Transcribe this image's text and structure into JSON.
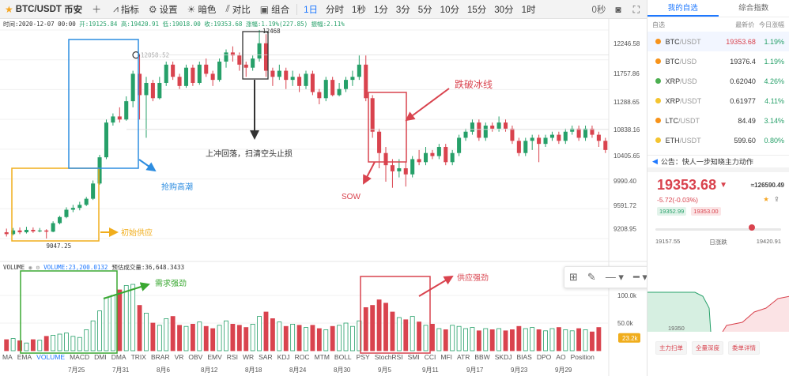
{
  "toolbar": {
    "symbol": "BTC/USDT",
    "exchange": "币安",
    "indicators": "指标",
    "settings": "设置",
    "dark": "暗色",
    "compare": "对比",
    "combo": "组合",
    "intervals": [
      "1日",
      "分时",
      "1秒",
      "1分",
      "3分",
      "5分",
      "10分",
      "15分",
      "30分",
      "1时"
    ],
    "countdown": "0秒"
  },
  "info": {
    "time": "时间:2020-12-07 00:00",
    "open": "开:19125.84",
    "high": "高:19420.91",
    "low": "低:19018.00",
    "close": "收:19353.68",
    "change": "涨幅:1.19%(227.85)",
    "amplitude": "振幅:2.11%"
  },
  "volume_info": {
    "name": "VOLUME",
    "value": "VOLUME:23,200.0132",
    "forecast": "预估成交量:36,648.3433"
  },
  "indicators": [
    "MA",
    "EMA",
    "VOLUME",
    "MACD",
    "DMI",
    "DMA",
    "TRIX",
    "BRAR",
    "VR",
    "OBV",
    "EMV",
    "RSI",
    "WR",
    "SAR",
    "KDJ",
    "ROC",
    "MTM",
    "BOLL",
    "PSY",
    "StochRSI",
    "SMI",
    "CCI",
    "MFI",
    "ATR",
    "BBW",
    "SKDJ",
    "BIAS",
    "DPO",
    "AO",
    "Position"
  ],
  "chart_data": {
    "type": "candlestick",
    "y_axis_ticks": [
      "12246.58",
      "11757.86",
      "11288.65",
      "10838.16",
      "10405.65",
      "9990.40",
      "9591.72",
      "9208.95"
    ],
    "volume_axis_ticks": [
      "100.0k",
      "50.0k"
    ],
    "volume_label": "23.2k",
    "x_ticks": [
      "7月25",
      "7月31",
      "8月6",
      "8月12",
      "8月18",
      "8月24",
      "8月30",
      "9月5",
      "9月11",
      "9月17",
      "9月23",
      "9月29"
    ],
    "annotations": {
      "high_marker": "12468",
      "low_marker": "9047.25",
      "mid_marker": "12058.52"
    },
    "candles": [
      {
        "o": 9150,
        "c": 9120,
        "h": 9210,
        "l": 9080
      },
      {
        "o": 9120,
        "c": 9180,
        "h": 9220,
        "l": 9100
      },
      {
        "o": 9180,
        "c": 9150,
        "h": 9230,
        "l": 9120
      },
      {
        "o": 9150,
        "c": 9190,
        "h": 9240,
        "l": 9130
      },
      {
        "o": 9190,
        "c": 9165,
        "h": 9230,
        "l": 9140
      },
      {
        "o": 9165,
        "c": 9180,
        "h": 9220,
        "l": 9150
      },
      {
        "o": 9180,
        "c": 9160,
        "h": 9200,
        "l": 9047
      },
      {
        "o": 9160,
        "c": 9300,
        "h": 9330,
        "l": 9150
      },
      {
        "o": 9300,
        "c": 9400,
        "h": 9420,
        "l": 9280
      },
      {
        "o": 9400,
        "c": 9520,
        "h": 9560,
        "l": 9380
      },
      {
        "o": 9520,
        "c": 9550,
        "h": 9600,
        "l": 9480
      },
      {
        "o": 9550,
        "c": 9600,
        "h": 9650,
        "l": 9510
      },
      {
        "o": 9600,
        "c": 9700,
        "h": 9730,
        "l": 9580
      },
      {
        "o": 9700,
        "c": 9950,
        "h": 10000,
        "l": 9680
      },
      {
        "o": 9950,
        "c": 10380,
        "h": 10420,
        "l": 9930
      },
      {
        "o": 10380,
        "c": 10950,
        "h": 11000,
        "l": 10350
      },
      {
        "o": 10950,
        "c": 11050,
        "h": 11100,
        "l": 10900
      },
      {
        "o": 11050,
        "c": 11000,
        "h": 11200,
        "l": 10950
      },
      {
        "o": 11000,
        "c": 11300,
        "h": 11380,
        "l": 10980
      },
      {
        "o": 11300,
        "c": 11750,
        "h": 11800,
        "l": 11200
      },
      {
        "o": 11750,
        "c": 11400,
        "h": 12058,
        "l": 11000
      },
      {
        "o": 11400,
        "c": 11600,
        "h": 11700,
        "l": 10700
      },
      {
        "o": 11600,
        "c": 11350,
        "h": 11650,
        "l": 11300
      },
      {
        "o": 11350,
        "c": 11600,
        "h": 11700,
        "l": 11330
      },
      {
        "o": 11600,
        "c": 11900,
        "h": 11950,
        "l": 11550
      },
      {
        "o": 11900,
        "c": 11700,
        "h": 11950,
        "l": 11650
      },
      {
        "o": 11700,
        "c": 11550,
        "h": 11750,
        "l": 11500
      },
      {
        "o": 11550,
        "c": 11850,
        "h": 11900,
        "l": 11520
      },
      {
        "o": 11850,
        "c": 11600,
        "h": 11900,
        "l": 11550
      },
      {
        "o": 11600,
        "c": 11900,
        "h": 11950,
        "l": 11570
      },
      {
        "o": 11900,
        "c": 11750,
        "h": 12000,
        "l": 11700
      },
      {
        "o": 11750,
        "c": 11650,
        "h": 11800,
        "l": 11550
      },
      {
        "o": 11650,
        "c": 11950,
        "h": 12000,
        "l": 11620
      },
      {
        "o": 11950,
        "c": 12100,
        "h": 12150,
        "l": 11850
      },
      {
        "o": 12100,
        "c": 12050,
        "h": 12200,
        "l": 11950
      },
      {
        "o": 12050,
        "c": 11900,
        "h": 12100,
        "l": 11800
      },
      {
        "o": 11900,
        "c": 11850,
        "h": 11950,
        "l": 11700
      },
      {
        "o": 11850,
        "c": 12000,
        "h": 12050,
        "l": 11800
      },
      {
        "o": 12000,
        "c": 12250,
        "h": 12468,
        "l": 11950
      },
      {
        "o": 12250,
        "c": 11800,
        "h": 12400,
        "l": 11700
      },
      {
        "o": 11800,
        "c": 11700,
        "h": 11850,
        "l": 11550
      },
      {
        "o": 11700,
        "c": 11800,
        "h": 11900,
        "l": 11650
      },
      {
        "o": 11800,
        "c": 11650,
        "h": 11850,
        "l": 11500
      },
      {
        "o": 11650,
        "c": 11700,
        "h": 11800,
        "l": 11550
      },
      {
        "o": 11700,
        "c": 11550,
        "h": 11750,
        "l": 11450
      },
      {
        "o": 11550,
        "c": 11750,
        "h": 11800,
        "l": 11500
      },
      {
        "o": 11750,
        "c": 11450,
        "h": 11800,
        "l": 11400
      },
      {
        "o": 11450,
        "c": 11350,
        "h": 11500,
        "l": 11250
      },
      {
        "o": 11350,
        "c": 11650,
        "h": 11700,
        "l": 11300
      },
      {
        "o": 11650,
        "c": 11400,
        "h": 11700,
        "l": 11380
      },
      {
        "o": 11400,
        "c": 11500,
        "h": 11600,
        "l": 11380
      },
      {
        "o": 11500,
        "c": 11650,
        "h": 11700,
        "l": 11450
      },
      {
        "o": 11650,
        "c": 11700,
        "h": 11800,
        "l": 11550
      },
      {
        "o": 11700,
        "c": 11900,
        "h": 12050,
        "l": 11650
      },
      {
        "o": 11900,
        "c": 11350,
        "h": 12050,
        "l": 11300
      },
      {
        "o": 11350,
        "c": 10800,
        "h": 11400,
        "l": 10700
      },
      {
        "o": 10800,
        "c": 10450,
        "h": 10850,
        "l": 10200
      },
      {
        "o": 10450,
        "c": 10250,
        "h": 10550,
        "l": 9980
      },
      {
        "o": 10250,
        "c": 10150,
        "h": 10350,
        "l": 9880
      },
      {
        "o": 10150,
        "c": 10200,
        "h": 10350,
        "l": 10050
      },
      {
        "o": 10200,
        "c": 10100,
        "h": 10300,
        "l": 9900
      },
      {
        "o": 10100,
        "c": 10350,
        "h": 10400,
        "l": 10050
      },
      {
        "o": 10350,
        "c": 10300,
        "h": 10500,
        "l": 10250
      },
      {
        "o": 10300,
        "c": 10450,
        "h": 10550,
        "l": 10250
      },
      {
        "o": 10450,
        "c": 10400,
        "h": 10500,
        "l": 10350
      },
      {
        "o": 10400,
        "c": 10550,
        "h": 10600,
        "l": 10350
      },
      {
        "o": 10550,
        "c": 10300,
        "h": 10600,
        "l": 10250
      },
      {
        "o": 10300,
        "c": 10450,
        "h": 10500,
        "l": 10250
      },
      {
        "o": 10450,
        "c": 10700,
        "h": 10750,
        "l": 10400
      },
      {
        "o": 10700,
        "c": 10800,
        "h": 10850,
        "l": 10650
      },
      {
        "o": 10800,
        "c": 10950,
        "h": 11000,
        "l": 10750
      },
      {
        "o": 10950,
        "c": 10700,
        "h": 11000,
        "l": 10650
      },
      {
        "o": 10700,
        "c": 10900,
        "h": 10950,
        "l": 10650
      },
      {
        "o": 10900,
        "c": 10850,
        "h": 10950,
        "l": 10800
      },
      {
        "o": 10850,
        "c": 10950,
        "h": 11050,
        "l": 10800
      },
      {
        "o": 10950,
        "c": 10850,
        "h": 11000,
        "l": 10800
      },
      {
        "o": 10850,
        "c": 10650,
        "h": 10900,
        "l": 10600
      },
      {
        "o": 10650,
        "c": 10450,
        "h": 10700,
        "l": 10400
      },
      {
        "o": 10450,
        "c": 10650,
        "h": 10700,
        "l": 10400
      },
      {
        "o": 10650,
        "c": 10700,
        "h": 10750,
        "l": 10500
      },
      {
        "o": 10700,
        "c": 10600,
        "h": 10750,
        "l": 10300
      },
      {
        "o": 10600,
        "c": 10700,
        "h": 10750,
        "l": 10550
      },
      {
        "o": 10700,
        "c": 10750,
        "h": 10800,
        "l": 10650
      },
      {
        "o": 10750,
        "c": 10650,
        "h": 10800,
        "l": 10600
      },
      {
        "o": 10650,
        "c": 10800,
        "h": 10850,
        "l": 10600
      },
      {
        "o": 10800,
        "c": 10850,
        "h": 10900,
        "l": 10750
      },
      {
        "o": 10850,
        "c": 10700,
        "h": 10900,
        "l": 10650
      },
      {
        "o": 10700,
        "c": 10850,
        "h": 10900,
        "l": 10650
      },
      {
        "o": 10850,
        "c": 10750,
        "h": 10900,
        "l": 10700
      },
      {
        "o": 10750,
        "c": 10650,
        "h": 10800,
        "l": 10550
      },
      {
        "o": 10650,
        "c": 10500,
        "h": 10700,
        "l": 10450
      }
    ],
    "volumes": [
      20,
      22,
      18,
      14,
      20,
      19,
      26,
      28,
      30,
      32,
      26,
      24,
      38,
      54,
      72,
      96,
      100,
      110,
      118,
      120,
      82,
      68,
      50,
      46,
      58,
      62,
      46,
      44,
      48,
      52,
      44,
      40,
      46,
      54,
      48,
      46,
      42,
      48,
      62,
      70,
      58,
      52,
      44,
      48,
      46,
      42,
      46,
      40,
      38,
      44,
      46,
      50,
      44,
      54,
      78,
      82,
      92,
      86,
      70,
      60,
      56,
      62,
      52,
      46,
      48,
      40,
      38,
      46,
      44,
      40,
      42,
      36,
      40,
      38,
      40,
      36,
      38,
      44,
      40,
      42,
      38,
      36,
      40,
      42,
      38,
      36,
      40,
      38,
      34,
      42
    ]
  },
  "annotations": {
    "rush": "抢购高潮",
    "initial": "初始供应",
    "pullback": "上冲回落，扫清空头止损",
    "breakice": "跌破冰线",
    "sow": "SOW",
    "demand": "需求强劲",
    "supply": "供应强劲"
  },
  "sidebar": {
    "tabs": [
      "我的自选",
      "综合指数"
    ],
    "header": {
      "market": "自选",
      "price": "最新价",
      "change": "今日涨幅"
    },
    "rows": [
      {
        "base": "BTC",
        "quote": "/USDT",
        "price": "19353.68",
        "change": "1.19%",
        "color": "#f7931a",
        "sel": true
      },
      {
        "base": "BTC",
        "quote": "/USD",
        "price": "19376.4",
        "change": "1.19%",
        "color": "#f7931a",
        "sel": false
      },
      {
        "base": "XRP",
        "quote": "/USD",
        "price": "0.62040",
        "change": "4.26%",
        "color": "#4caf50",
        "sel": false
      },
      {
        "base": "XRP",
        "quote": "/USDT",
        "price": "0.61977",
        "change": "4.11%",
        "color": "#f4c430",
        "sel": false
      },
      {
        "base": "LTC",
        "quote": "/USDT",
        "price": "84.49",
        "change": "3.14%",
        "color": "#f7931a",
        "sel": false
      },
      {
        "base": "ETH",
        "quote": "/USDT",
        "price": "599.60",
        "change": "0.80%",
        "color": "#f4c430",
        "sel": false
      }
    ],
    "notice": "公告：快人一步知晓主力动作",
    "big_price": "19353.68",
    "big_vol": "≈126590.49",
    "change": "-5.72(-0.03%)",
    "bid": "19352.99",
    "ask": "19353.00",
    "range_low": "19157.55",
    "range_mid": "日涨跌",
    "range_high": "19420.91",
    "mini_label": "19350",
    "buttons": [
      "主力扫单",
      "全量深度",
      "委单详情"
    ]
  }
}
